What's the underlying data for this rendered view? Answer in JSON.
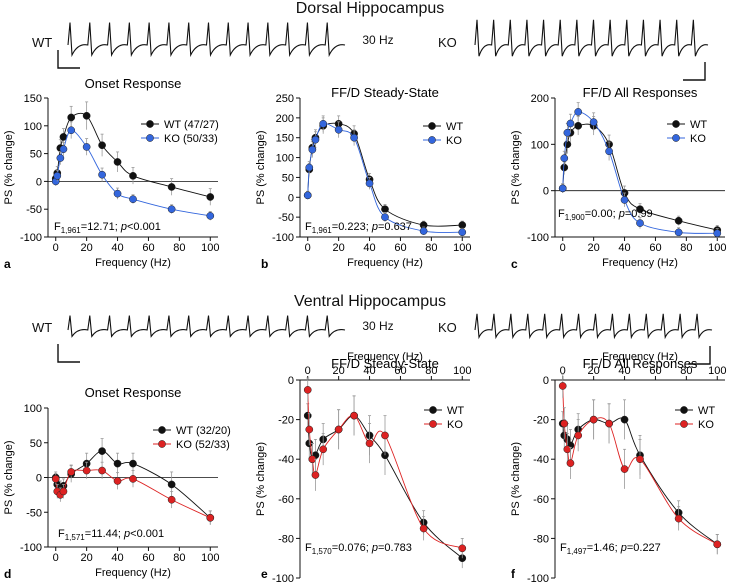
{
  "figure": {
    "sections": [
      {
        "title": "Dorsal Hippocampus",
        "trace_labels": {
          "left": "WT",
          "center": "30 Hz",
          "right": "KO"
        }
      },
      {
        "title": "Ventral Hippocampus",
        "trace_labels": {
          "left": "WT",
          "center": "30 Hz",
          "right": "KO"
        }
      }
    ]
  },
  "chart_data": [
    {
      "id": "a",
      "type": "line",
      "panel_letter": "a",
      "title": "Onset Response",
      "xlabel": "Frequency (Hz)",
      "ylabel": "PS (% change)",
      "xlim": [
        -5,
        105
      ],
      "ylim": [
        -100,
        150
      ],
      "xticks": [
        0,
        20,
        40,
        60,
        80,
        100
      ],
      "yticks": [
        -100,
        -50,
        0,
        50,
        100,
        150
      ],
      "x_axis_position": "bottom",
      "zero_line": true,
      "legend": "top-right",
      "stat": {
        "pre": "F",
        "sub": "1,961",
        "post": "=12.71; ",
        "p_sym": "p",
        "p_val": "<0.001"
      },
      "series": [
        {
          "name": "WT (47/27)",
          "color": "#111111",
          "x": [
            0,
            1,
            3,
            5,
            10,
            20,
            30,
            40,
            50,
            75,
            100
          ],
          "y": [
            5,
            15,
            60,
            80,
            115,
            118,
            65,
            35,
            10,
            -10,
            -28
          ],
          "err": [
            10,
            12,
            15,
            15,
            20,
            25,
            20,
            18,
            15,
            15,
            15
          ]
        },
        {
          "name": "KO (50/33)",
          "color": "#3366dd",
          "x": [
            0,
            1,
            3,
            5,
            10,
            20,
            30,
            40,
            50,
            75,
            100
          ],
          "y": [
            0,
            10,
            42,
            58,
            92,
            62,
            12,
            -22,
            -32,
            -50,
            -62
          ],
          "err": [
            8,
            10,
            12,
            12,
            15,
            15,
            12,
            10,
            8,
            8,
            8
          ]
        }
      ]
    },
    {
      "id": "b",
      "type": "line",
      "panel_letter": "b",
      "title": "FF/D Steady-State",
      "xlabel": "Frequency (Hz)",
      "ylabel": "PS (% change)",
      "xlim": [
        -5,
        105
      ],
      "ylim": [
        -100,
        250
      ],
      "xticks": [
        0,
        20,
        40,
        60,
        80,
        100
      ],
      "yticks": [
        -100,
        -50,
        0,
        50,
        100,
        150,
        200,
        250
      ],
      "x_axis_position": "bottom",
      "zero_line": false,
      "legend": "top-right",
      "stat": {
        "pre": "F",
        "sub": "1,961",
        "post": "=0.223; ",
        "p_sym": "p",
        "p_val": "=0.637"
      },
      "series": [
        {
          "name": "WT",
          "color": "#111111",
          "x": [
            0,
            1,
            3,
            5,
            10,
            20,
            30,
            40,
            50,
            75,
            100
          ],
          "y": [
            5,
            70,
            125,
            150,
            180,
            185,
            160,
            45,
            -30,
            -70,
            -70
          ],
          "err": [
            10,
            15,
            20,
            20,
            20,
            20,
            20,
            15,
            12,
            10,
            10
          ]
        },
        {
          "name": "KO",
          "color": "#3366dd",
          "x": [
            0,
            1,
            3,
            5,
            10,
            20,
            30,
            40,
            50,
            75,
            100
          ],
          "y": [
            5,
            75,
            120,
            145,
            185,
            170,
            150,
            35,
            -50,
            -85,
            -88
          ],
          "err": [
            10,
            15,
            20,
            20,
            20,
            20,
            20,
            15,
            12,
            10,
            10
          ]
        }
      ]
    },
    {
      "id": "c",
      "type": "line",
      "panel_letter": "c",
      "title": "FF/D All Responses",
      "xlabel": "Frequency (Hz)",
      "ylabel": "PS (% change)",
      "xlim": [
        -5,
        105
      ],
      "ylim": [
        -100,
        200
      ],
      "xticks": [
        0,
        20,
        40,
        60,
        80,
        100
      ],
      "yticks": [
        -100,
        0,
        100,
        200
      ],
      "x_axis_position": "bottom",
      "zero_line": true,
      "legend": "top-right",
      "stat": {
        "pre": "F",
        "sub": "1,900",
        "post": "=0.00; ",
        "p_sym": "p",
        "p_val": "=0.99"
      },
      "series": [
        {
          "name": "WT",
          "color": "#111111",
          "x": [
            0,
            1,
            3,
            5,
            10,
            20,
            30,
            40,
            50,
            75,
            100
          ],
          "y": [
            5,
            50,
            100,
            125,
            140,
            140,
            100,
            -5,
            -40,
            -65,
            -85
          ],
          "err": [
            10,
            15,
            20,
            20,
            20,
            20,
            20,
            15,
            12,
            10,
            10
          ]
        },
        {
          "name": "KO",
          "color": "#3366dd",
          "x": [
            0,
            1,
            3,
            5,
            10,
            20,
            30,
            40,
            50,
            75,
            100
          ],
          "y": [
            5,
            70,
            125,
            145,
            170,
            148,
            85,
            -20,
            -70,
            -90,
            -92
          ],
          "err": [
            10,
            15,
            20,
            20,
            20,
            20,
            20,
            15,
            12,
            10,
            10
          ]
        }
      ]
    },
    {
      "id": "d",
      "type": "line",
      "panel_letter": "d",
      "title": "Onset Response",
      "xlabel": "Frequency (Hz)",
      "ylabel": "PS (% change)",
      "xlim": [
        -5,
        105
      ],
      "ylim": [
        -100,
        100
      ],
      "xticks": [
        0,
        20,
        40,
        60,
        80,
        100
      ],
      "yticks": [
        -100,
        -50,
        0,
        50,
        100
      ],
      "x_axis_position": "bottom",
      "zero_line": true,
      "legend": "top-right",
      "stat": {
        "pre": "F",
        "sub": "1,571",
        "post": "=11.44; ",
        "p_sym": "p",
        "p_val": "<0.001"
      },
      "series": [
        {
          "name": "WT (32/20)",
          "color": "#111111",
          "x": [
            0,
            1,
            3,
            5,
            10,
            20,
            30,
            40,
            50,
            75,
            100
          ],
          "y": [
            0,
            -10,
            -15,
            -12,
            5,
            20,
            38,
            20,
            20,
            -10,
            -58
          ],
          "err": [
            8,
            10,
            10,
            10,
            12,
            15,
            18,
            15,
            15,
            18,
            10
          ]
        },
        {
          "name": "KO (52/33)",
          "color": "#dd2222",
          "x": [
            0,
            1,
            3,
            5,
            10,
            20,
            30,
            40,
            50,
            75,
            100
          ],
          "y": [
            -2,
            -20,
            -25,
            -20,
            8,
            10,
            10,
            -5,
            -2,
            -32,
            -58
          ],
          "err": [
            8,
            10,
            10,
            10,
            10,
            12,
            12,
            12,
            12,
            12,
            10
          ]
        }
      ]
    },
    {
      "id": "e",
      "type": "line",
      "panel_letter": "e",
      "title": "FF/D Steady-State",
      "xlabel": "Frequency (Hz)",
      "ylabel": "PS (% change)",
      "xlim": [
        -5,
        105
      ],
      "ylim": [
        -100,
        0
      ],
      "xticks": [
        0,
        20,
        40,
        60,
        80,
        100
      ],
      "yticks": [
        -100,
        -80,
        -60,
        -40,
        -20,
        0
      ],
      "x_axis_position": "top",
      "zero_line": false,
      "legend": "top-right",
      "stat": {
        "pre": "F",
        "sub": "1,570",
        "post": "=0.076; ",
        "p_sym": "p",
        "p_val": "=0.783"
      },
      "series": [
        {
          "name": "WT",
          "color": "#111111",
          "x": [
            0,
            1,
            3,
            5,
            10,
            20,
            30,
            40,
            50,
            75,
            100
          ],
          "y": [
            -18,
            -32,
            -40,
            -38,
            -30,
            -25,
            -18,
            -28,
            -38,
            -72,
            -90
          ],
          "err": [
            6,
            8,
            8,
            8,
            8,
            10,
            10,
            10,
            10,
            6,
            5
          ]
        },
        {
          "name": "KO",
          "color": "#dd2222",
          "x": [
            0,
            1,
            3,
            5,
            10,
            20,
            30,
            40,
            50,
            75,
            100
          ],
          "y": [
            -5,
            -25,
            -40,
            -48,
            -35,
            -25,
            -18,
            -32,
            -28,
            -75,
            -85
          ],
          "err": [
            6,
            8,
            8,
            8,
            8,
            10,
            10,
            10,
            10,
            6,
            5
          ]
        }
      ]
    },
    {
      "id": "f",
      "type": "line",
      "panel_letter": "f",
      "title": "FF/D All Responses",
      "xlabel": "Frequency (Hz)",
      "ylabel": "PS (% change)",
      "xlim": [
        -5,
        105
      ],
      "ylim": [
        -100,
        0
      ],
      "xticks": [
        0,
        20,
        40,
        60,
        80,
        100
      ],
      "yticks": [
        -100,
        -80,
        -60,
        -40,
        -20,
        0
      ],
      "x_axis_position": "top",
      "zero_line": false,
      "legend": "top-right",
      "stat": {
        "pre": "F",
        "sub": "1,497",
        "post": "=1.46; ",
        "p_sym": "p",
        "p_val": "=0.227"
      },
      "series": [
        {
          "name": "WT",
          "color": "#111111",
          "x": [
            0,
            1,
            3,
            5,
            10,
            20,
            30,
            40,
            50,
            75,
            100
          ],
          "y": [
            -22,
            -28,
            -30,
            -33,
            -25,
            -20,
            -22,
            -20,
            -38,
            -67,
            -83
          ],
          "err": [
            6,
            8,
            8,
            8,
            8,
            10,
            10,
            10,
            10,
            6,
            5
          ]
        },
        {
          "name": "KO",
          "color": "#dd2222",
          "x": [
            0,
            1,
            3,
            5,
            10,
            20,
            30,
            40,
            50,
            75,
            100
          ],
          "y": [
            -3,
            -22,
            -35,
            -42,
            -28,
            -20,
            -22,
            -45,
            -40,
            -70,
            -83
          ],
          "err": [
            6,
            8,
            8,
            8,
            8,
            10,
            10,
            10,
            10,
            6,
            5
          ]
        }
      ]
    }
  ]
}
